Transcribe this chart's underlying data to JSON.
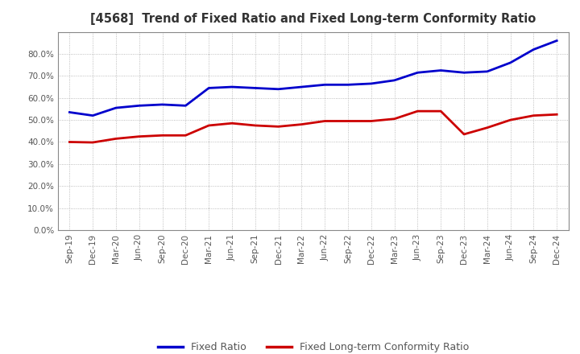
{
  "title": "[4568]  Trend of Fixed Ratio and Fixed Long-term Conformity Ratio",
  "x_labels": [
    "Sep-19",
    "Dec-19",
    "Mar-20",
    "Jun-20",
    "Sep-20",
    "Dec-20",
    "Mar-21",
    "Jun-21",
    "Sep-21",
    "Dec-21",
    "Mar-22",
    "Jun-22",
    "Sep-22",
    "Dec-22",
    "Mar-23",
    "Jun-23",
    "Sep-23",
    "Dec-23",
    "Mar-24",
    "Jun-24",
    "Sep-24",
    "Dec-24"
  ],
  "fixed_ratio": [
    53.5,
    52.0,
    55.5,
    56.5,
    57.0,
    56.5,
    64.5,
    65.0,
    64.5,
    64.0,
    65.0,
    66.0,
    66.0,
    66.5,
    68.0,
    71.5,
    72.5,
    71.5,
    72.0,
    76.0,
    82.0,
    86.0
  ],
  "fixed_lt_ratio": [
    40.0,
    39.8,
    41.5,
    42.5,
    43.0,
    43.0,
    47.5,
    48.5,
    47.5,
    47.0,
    48.0,
    49.5,
    49.5,
    49.5,
    50.5,
    54.0,
    54.0,
    43.5,
    46.5,
    50.0,
    52.0,
    52.5
  ],
  "ylim": [
    0,
    90
  ],
  "yticks": [
    0,
    10,
    20,
    30,
    40,
    50,
    60,
    70,
    80
  ],
  "blue_color": "#0000CC",
  "red_color": "#CC0000",
  "background_color": "#FFFFFF",
  "grid_color": "#AAAAAA",
  "legend_fixed_ratio": "Fixed Ratio",
  "legend_fixed_lt_ratio": "Fixed Long-term Conformity Ratio",
  "line_width": 2.0,
  "tick_label_color": "#555555",
  "title_color": "#333333"
}
